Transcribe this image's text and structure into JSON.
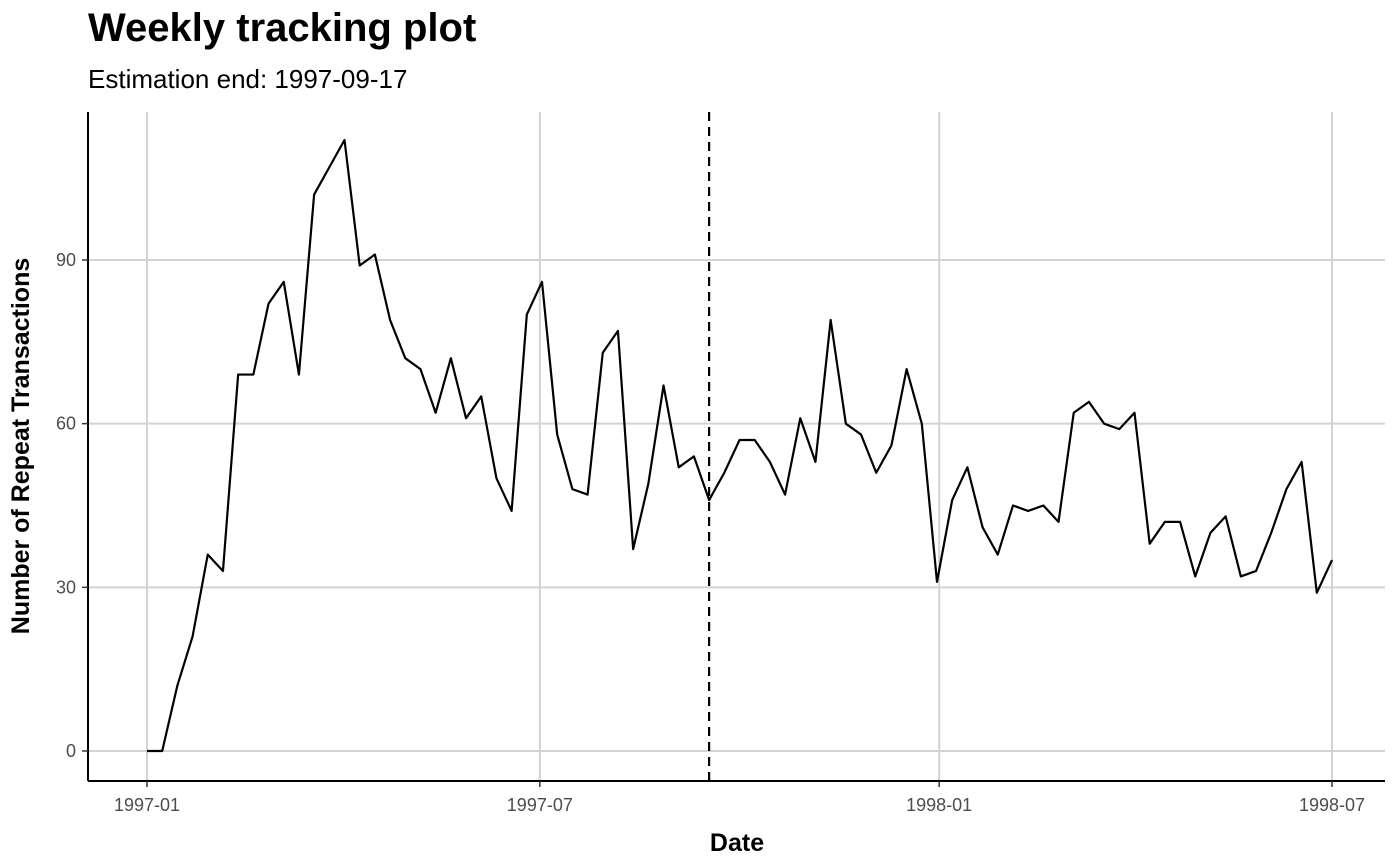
{
  "chart_data": {
    "type": "line",
    "title": "Weekly tracking plot",
    "subtitle": "Estimation end: 1997-09-17",
    "xlabel": "Date",
    "ylabel": "Number of Repeat Transactions",
    "x_ticks": [
      "1997-01",
      "1997-07",
      "1998-01",
      "1998-07"
    ],
    "y_ticks": [
      0,
      30,
      60,
      90
    ],
    "ylim": [
      -5.5,
      117
    ],
    "grid": true,
    "estimation_end": "1997-09-17",
    "series": [
      {
        "x": [
          "1997-01-01",
          "1997-01-08",
          "1997-01-15",
          "1997-01-22",
          "1997-01-29",
          "1997-02-05",
          "1997-02-12",
          "1997-02-19",
          "1997-02-26",
          "1997-03-05",
          "1997-03-12",
          "1997-03-19",
          "1997-03-26",
          "1997-04-02",
          "1997-04-09",
          "1997-04-16",
          "1997-04-23",
          "1997-04-30",
          "1997-05-07",
          "1997-05-14",
          "1997-05-21",
          "1997-05-28",
          "1997-06-04",
          "1997-06-11",
          "1997-06-18",
          "1997-06-25",
          "1997-07-02",
          "1997-07-09",
          "1997-07-16",
          "1997-07-23",
          "1997-07-30",
          "1997-08-06",
          "1997-08-13",
          "1997-08-20",
          "1997-08-27",
          "1997-09-03",
          "1997-09-10",
          "1997-09-17",
          "1997-09-24",
          "1997-10-01",
          "1997-10-08",
          "1997-10-15",
          "1997-10-22",
          "1997-10-29",
          "1997-11-05",
          "1997-11-12",
          "1997-11-19",
          "1997-11-26",
          "1997-12-03",
          "1997-12-10",
          "1997-12-17",
          "1997-12-24",
          "1997-12-31",
          "1998-01-07",
          "1998-01-14",
          "1998-01-21",
          "1998-01-28",
          "1998-02-04",
          "1998-02-11",
          "1998-02-18",
          "1998-02-25",
          "1998-03-04",
          "1998-03-11",
          "1998-03-18",
          "1998-03-25",
          "1998-04-01",
          "1998-04-08",
          "1998-04-15",
          "1998-04-22",
          "1998-04-29",
          "1998-05-06",
          "1998-05-13",
          "1998-05-20",
          "1998-05-27",
          "1998-06-03",
          "1998-06-10",
          "1998-06-17",
          "1998-06-24",
          "1998-07-01"
        ],
        "values": [
          0,
          0,
          12,
          21,
          36,
          33,
          69,
          69,
          82,
          86,
          69,
          102,
          107,
          112,
          89,
          91,
          79,
          72,
          70,
          62,
          72,
          61,
          65,
          50,
          44,
          80,
          86,
          58,
          48,
          47,
          73,
          77,
          37,
          49,
          67,
          52,
          54,
          46,
          51,
          57,
          57,
          53,
          47,
          61,
          53,
          79,
          60,
          58,
          51,
          56,
          70,
          60,
          31,
          46,
          52,
          41,
          36,
          45,
          44,
          45,
          42,
          62,
          64,
          60,
          59,
          62,
          38,
          42,
          42,
          32,
          40,
          43,
          32,
          33,
          40,
          48,
          53,
          29,
          35
        ]
      }
    ]
  }
}
